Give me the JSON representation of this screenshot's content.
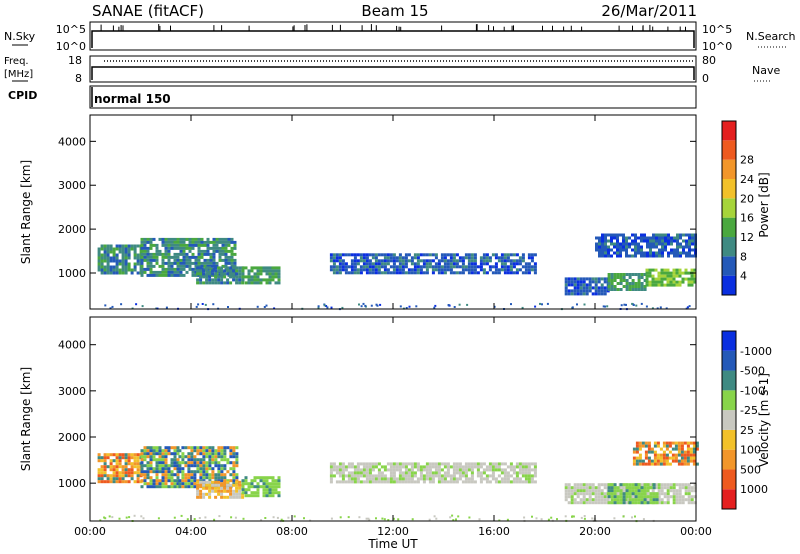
{
  "header": {
    "radar": "SANAE (fitACF)",
    "beam": "Beam 15",
    "date": "26/Mar/2011"
  },
  "strips": {
    "nsky": {
      "label": "N.Sky",
      "ticks": [
        "10^5",
        "10^0"
      ]
    },
    "nsearch": {
      "label": "N.Search",
      "ticks": [
        "10^5",
        "10^0"
      ]
    },
    "freq": {
      "label_line1": "Freq.",
      "label_line2": "[MHz]",
      "ticks": [
        "18",
        "8"
      ]
    },
    "nave": {
      "label": "Nave",
      "ticks": [
        "80",
        "0"
      ]
    },
    "cpid": {
      "label": "CPID",
      "value": "normal 150"
    }
  },
  "colors": {
    "power": [
      "#0a2fe0",
      "#2459b8",
      "#3f8a82",
      "#4aa83f",
      "#a6d43a",
      "#f2c12a",
      "#f2962a",
      "#ee5a1f",
      "#e41f1f"
    ],
    "velocity": [
      "#e41f1f",
      "#ee5a1f",
      "#f2962a",
      "#f2c12a",
      "#c8c8c0",
      "#88d44a",
      "#3f8a82",
      "#2459b8",
      "#0a2fe0"
    ]
  },
  "chart_data": [
    {
      "type": "heatmap",
      "name": "power",
      "xlabel": "Time UT",
      "ylabel": "Slant Range [km]",
      "xlim": [
        0,
        24
      ],
      "ylim": [
        180,
        4600
      ],
      "x_ticks": [
        "00:00",
        "04:00",
        "08:00",
        "12:00",
        "16:00",
        "20:00",
        "00:00"
      ],
      "y_ticks": [
        "1000",
        "2000",
        "3000",
        "4000"
      ],
      "colorbar": {
        "label": "Power [dB]",
        "ticks": [
          "4",
          "8",
          "12",
          "16",
          "20",
          "24",
          "28"
        ],
        "range": [
          0,
          32
        ]
      },
      "regions": [
        {
          "t0": 0.3,
          "t1": 2.0,
          "r0": 1000,
          "r1": 1650,
          "value": 10
        },
        {
          "t0": 2.0,
          "t1": 5.8,
          "r0": 950,
          "r1": 1800,
          "value": 10
        },
        {
          "t0": 4.2,
          "t1": 6.0,
          "r0": 750,
          "r1": 1150,
          "value": 9
        },
        {
          "t0": 6.0,
          "t1": 7.5,
          "r0": 750,
          "r1": 1150,
          "value": 12
        },
        {
          "t0": 9.5,
          "t1": 17.6,
          "r0": 1000,
          "r1": 1450,
          "value": 6
        },
        {
          "t0": 18.8,
          "t1": 20.5,
          "r0": 550,
          "r1": 900,
          "value": 6
        },
        {
          "t0": 20.5,
          "t1": 22.0,
          "r0": 600,
          "r1": 1000,
          "value": 12
        },
        {
          "t0": 22.0,
          "t1": 24.0,
          "r0": 700,
          "r1": 1100,
          "value": 16
        },
        {
          "t0": 20.0,
          "t1": 24.0,
          "r0": 1400,
          "r1": 1900,
          "value": 6
        }
      ]
    },
    {
      "type": "heatmap",
      "name": "velocity",
      "xlabel": "Time UT",
      "ylabel": "Slant Range [km]",
      "xlim": [
        0,
        24
      ],
      "ylim": [
        180,
        4600
      ],
      "x_ticks": [
        "00:00",
        "04:00",
        "08:00",
        "12:00",
        "16:00",
        "20:00",
        "00:00"
      ],
      "y_ticks": [
        "1000",
        "2000",
        "3000",
        "4000"
      ],
      "colorbar": {
        "label": "Velocity [m s-1]",
        "ticks": [
          "-1000",
          "-500",
          "-100",
          "-25",
          "25",
          "100",
          "500",
          "1000"
        ]
      },
      "regions": [
        {
          "t0": 0.3,
          "t1": 2.0,
          "r0": 1000,
          "r1": 1650,
          "category": "orange"
        },
        {
          "t0": 2.0,
          "t1": 3.5,
          "r0": 950,
          "r1": 1800,
          "category": "teal"
        },
        {
          "t0": 3.5,
          "t1": 5.8,
          "r0": 950,
          "r1": 1800,
          "category": "teal"
        },
        {
          "t0": 4.2,
          "t1": 6.0,
          "r0": 700,
          "r1": 1050,
          "category": "yellow"
        },
        {
          "t0": 6.0,
          "t1": 7.5,
          "r0": 750,
          "r1": 1150,
          "category": "light-green"
        },
        {
          "t0": 9.5,
          "t1": 17.6,
          "r0": 1000,
          "r1": 1450,
          "category": "gray"
        },
        {
          "t0": 18.8,
          "t1": 24.0,
          "r0": 550,
          "r1": 1000,
          "category": "gray"
        },
        {
          "t0": 20.5,
          "t1": 22.5,
          "r0": 550,
          "r1": 1000,
          "category": "light-green"
        },
        {
          "t0": 21.5,
          "t1": 24.0,
          "r0": 1400,
          "r1": 1900,
          "category": "orange"
        }
      ]
    }
  ]
}
